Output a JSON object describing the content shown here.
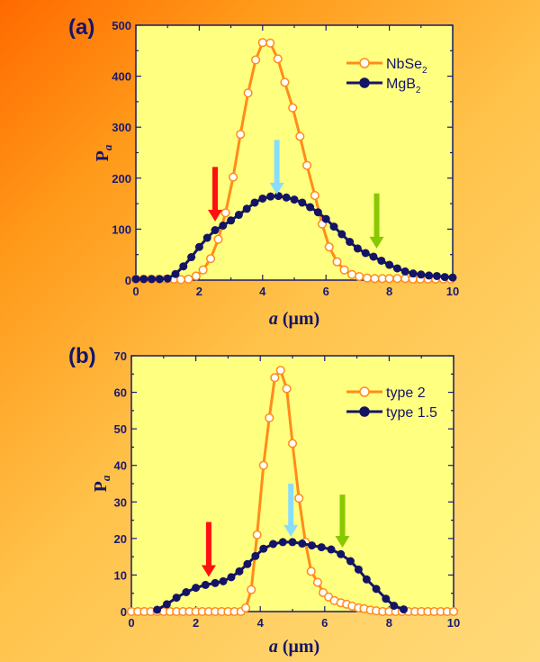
{
  "chart_data": [
    {
      "type": "line",
      "panel_label": "(a)",
      "xlabel": "a (μm)",
      "ylabel": "Pa",
      "xlim": [
        0,
        10
      ],
      "ylim": [
        0,
        500
      ],
      "xticks": [
        0,
        2,
        4,
        6,
        8,
        10
      ],
      "yticks": [
        0,
        100,
        200,
        300,
        400,
        500
      ],
      "grid": false,
      "legend_position": "top-right",
      "plot_background": "#ffff80",
      "series": [
        {
          "name": "NbSe2",
          "color": "#ff8c1a",
          "marker": "open-circle",
          "x": [
            0,
            0.24,
            0.48,
            0.72,
            0.96,
            1.2,
            1.42,
            1.66,
            1.9,
            2.12,
            2.36,
            2.6,
            2.83,
            3.07,
            3.3,
            3.54,
            3.78,
            4.0,
            4.24,
            4.48,
            4.7,
            4.95,
            5.18,
            5.4,
            5.65,
            5.88,
            6.1,
            6.35,
            6.58,
            6.82,
            7.05,
            7.3,
            7.54,
            7.78,
            8.0,
            8.25,
            8.5,
            8.74,
            8.98,
            9.22,
            9.46,
            9.7,
            9.94
          ],
          "y": [
            2,
            2,
            2,
            2,
            2,
            2,
            1,
            2,
            8,
            20,
            42,
            80,
            132,
            202,
            286,
            367,
            432,
            466,
            465,
            434,
            388,
            338,
            282,
            225,
            166,
            110,
            65,
            36,
            20,
            11,
            7,
            4,
            3,
            3,
            3,
            3,
            3,
            2,
            2,
            2,
            2,
            2,
            2
          ]
        },
        {
          "name": "MgB2",
          "color": "#141466",
          "marker": "filled-circle",
          "x": [
            0,
            0.25,
            0.5,
            0.75,
            1.0,
            1.25,
            1.5,
            1.75,
            2.0,
            2.25,
            2.5,
            2.75,
            3.0,
            3.25,
            3.5,
            3.75,
            4.0,
            4.25,
            4.5,
            4.75,
            5.0,
            5.25,
            5.5,
            5.75,
            6.0,
            6.25,
            6.5,
            6.75,
            7.0,
            7.25,
            7.5,
            7.75,
            8.0,
            8.25,
            8.5,
            8.75,
            9.0,
            9.25,
            9.5,
            9.75,
            10.0
          ],
          "y": [
            2,
            2,
            2,
            2,
            3,
            12,
            27,
            45,
            65,
            83,
            98,
            107,
            117,
            128,
            140,
            152,
            160,
            164,
            165,
            162,
            158,
            152,
            143,
            133,
            120,
            105,
            90,
            75,
            62,
            53,
            46,
            38,
            30,
            23,
            17,
            13,
            11,
            9,
            8,
            6,
            5
          ]
        }
      ],
      "arrows": [
        {
          "color": "#ff1010",
          "x": 2.5,
          "y_from": 222,
          "y_to": 115
        },
        {
          "color": "#88ddff",
          "x": 4.45,
          "y_from": 275,
          "y_to": 168
        },
        {
          "color": "#88c800",
          "x": 7.6,
          "y_from": 170,
          "y_to": 62
        }
      ]
    },
    {
      "type": "line",
      "panel_label": "(b)",
      "xlabel": "a (μm)",
      "ylabel": "Pa",
      "xlim": [
        0,
        10
      ],
      "ylim": [
        0,
        70
      ],
      "xticks": [
        0,
        2,
        4,
        6,
        8,
        10
      ],
      "yticks": [
        0,
        10,
        20,
        30,
        40,
        50,
        60,
        70
      ],
      "grid": false,
      "legend_position": "top-right",
      "plot_background": "#ffff80",
      "series": [
        {
          "name": "type 2",
          "color": "#ff8c1a",
          "marker": "open-circle",
          "x": [
            0,
            0.2,
            0.4,
            0.6,
            0.8,
            1.0,
            1.2,
            1.4,
            1.6,
            1.8,
            2.0,
            2.2,
            2.4,
            2.6,
            2.8,
            3.0,
            3.2,
            3.4,
            3.55,
            3.72,
            3.9,
            4.1,
            4.28,
            4.45,
            4.63,
            4.82,
            5.0,
            5.2,
            5.4,
            5.58,
            5.78,
            5.95,
            6.12,
            6.3,
            6.5,
            6.68,
            6.85,
            7.05,
            7.22,
            7.42,
            7.6,
            7.8,
            8.0,
            8.2,
            8.4,
            8.6,
            8.8,
            9.0,
            9.2,
            9.4,
            9.6,
            9.8,
            10.0
          ],
          "y": [
            0,
            0,
            0,
            0,
            0,
            0,
            0,
            0,
            0,
            0,
            0,
            0,
            0,
            0,
            0,
            0,
            0,
            0,
            1,
            6,
            21,
            40,
            53,
            64,
            66,
            61,
            46,
            31,
            19,
            11,
            8,
            5.2,
            4,
            3,
            2.4,
            2,
            1.5,
            1,
            0.8,
            0.4,
            0.2,
            0,
            0,
            0,
            0,
            0,
            0,
            0,
            0,
            0,
            0,
            0,
            0
          ]
        },
        {
          "name": "type 1.5",
          "color": "#141466",
          "marker": "filled-circle",
          "x": [
            0.8,
            1.1,
            1.4,
            1.7,
            2.0,
            2.3,
            2.6,
            2.85,
            3.1,
            3.35,
            3.6,
            3.85,
            4.1,
            4.4,
            4.7,
            5.0,
            5.3,
            5.6,
            5.9,
            6.2,
            6.5,
            6.8,
            7.05,
            7.3,
            7.6,
            7.9,
            8.15,
            8.45
          ],
          "y": [
            0.5,
            2,
            3.8,
            5.3,
            6.5,
            7.3,
            7.8,
            8.3,
            9.4,
            11,
            13,
            15.2,
            17.2,
            18.5,
            19,
            19,
            18.6,
            18.1,
            17.6,
            17,
            15.7,
            13.8,
            11.5,
            8.8,
            6.2,
            3.5,
            1.6,
            0.6
          ]
        }
      ],
      "arrows": [
        {
          "color": "#ff1010",
          "x": 2.4,
          "y_from": 24.5,
          "y_to": 9.5
        },
        {
          "color": "#88ddff",
          "x": 4.95,
          "y_from": 35,
          "y_to": 20.5
        },
        {
          "color": "#88c800",
          "x": 6.55,
          "y_from": 32,
          "y_to": 17.5
        }
      ]
    }
  ]
}
